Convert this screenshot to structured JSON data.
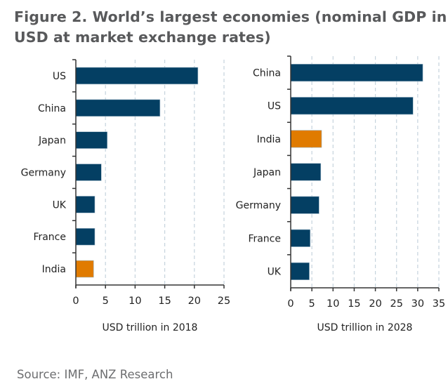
{
  "title": "Figure 2.  World’s largest economies (nominal GDP in USD at market exchange rates)",
  "source": "Source: IMF, ANZ Research",
  "colors": {
    "bar": "#043f63",
    "highlight": "#e07b00",
    "grid": "#c5d3dd",
    "axis": "#333333"
  },
  "chart_data": [
    {
      "type": "bar",
      "orientation": "horizontal",
      "title": "",
      "xlabel": "USD trillion  in 2018",
      "ylabel": "",
      "categories": [
        "US",
        "China",
        "Japan",
        "Germany",
        "UK",
        "France",
        "India"
      ],
      "values": [
        20.6,
        14.2,
        5.3,
        4.3,
        3.2,
        3.2,
        3.0
      ],
      "highlight": [
        "India"
      ],
      "xlim": [
        0,
        25
      ],
      "xticks": [
        "0",
        "5",
        "10",
        "15",
        "20",
        "25"
      ],
      "grid": "vertical dashed"
    },
    {
      "type": "bar",
      "orientation": "horizontal",
      "title": "",
      "xlabel": "USD trillion  in 2028",
      "ylabel": "",
      "categories": [
        "China",
        "US",
        "India",
        "Japan",
        "Germany",
        "France",
        "UK"
      ],
      "values": [
        31.2,
        28.9,
        7.3,
        7.1,
        6.7,
        4.6,
        4.4
      ],
      "highlight": [
        "India"
      ],
      "xlim": [
        0,
        35
      ],
      "xticks": [
        "0",
        "5",
        "10",
        "15",
        "20",
        "25",
        "30",
        "35"
      ],
      "grid": "vertical dashed"
    }
  ]
}
